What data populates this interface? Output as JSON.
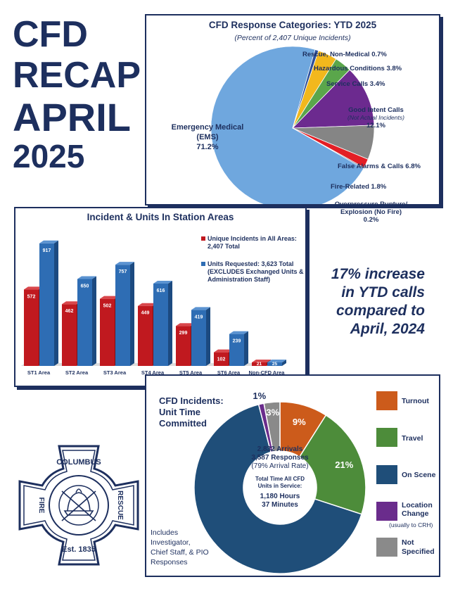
{
  "recap": {
    "line1": "CFD",
    "line2": "RECAP",
    "line3": "APRIL",
    "line4": "2025"
  },
  "statement": {
    "line1": "17% increase",
    "line2": "in YTD calls",
    "line3": "compared to",
    "line4": "April, 2024"
  },
  "logo": {
    "top_text": "COLUMBUS",
    "left_text": "FIRE",
    "right_text": "RESCUE",
    "bottom_text": "Est. 1835"
  },
  "chart_data": [
    {
      "type": "pie",
      "title": "CFD Response Categories: YTD 2025",
      "subtitle": "(Percent of 2,407 Unique Incidents)",
      "slices": [
        {
          "label": "Emergency Medical (EMS)",
          "value": 71.2,
          "value_text": "71.2%",
          "color": "#6fa7de"
        },
        {
          "label": "Rescue, Non-Medical",
          "value": 0.7,
          "value_text": "0.7%",
          "color": "#2d4f9a"
        },
        {
          "label": "Hazardous Conditions",
          "value": 3.8,
          "value_text": "3.8%",
          "color": "#f2b81d"
        },
        {
          "label": "Service Calls",
          "value": 3.4,
          "value_text": "3.4%",
          "color": "#5aa64b"
        },
        {
          "label": "Good Intent Calls",
          "note": "(Not Actual Incidents)",
          "value": 12.1,
          "value_text": "12.1%",
          "color": "#6c2a8f"
        },
        {
          "label": "False Alarms & Calls",
          "value": 6.8,
          "value_text": "6.8%",
          "color": "#858585"
        },
        {
          "label": "Fire-Related",
          "value": 1.8,
          "value_text": "1.8%",
          "color": "#e31e25"
        },
        {
          "label": "Overpressure Rupture/ Explosion (No Fire)",
          "value": 0.2,
          "value_text": "0.2%",
          "color": "#1d2f5e"
        }
      ]
    },
    {
      "type": "bar",
      "title": "Incident & Units In Station Areas",
      "categories": [
        "ST1 Area",
        "ST2 Area",
        "ST3 Area",
        "ST4 Area",
        "ST5 Area",
        "ST6 Area",
        "Non-CFD Area"
      ],
      "series": [
        {
          "name": "Unique Incidents in All Areas: 2,407 Total",
          "color": "#c0191f",
          "values": [
            572,
            462,
            502,
            449,
            299,
            102,
            21
          ]
        },
        {
          "name": "Units Requested: 3,623 Total (EXCLUDES Exchanged Units & Administration Staff)",
          "color": "#2e6db4",
          "values": [
            917,
            650,
            757,
            616,
            419,
            239,
            25
          ]
        }
      ],
      "ylim": [
        0,
        1000
      ]
    },
    {
      "type": "pie",
      "title": "CFD Incidents: Unit Time Committed",
      "donut": true,
      "center": {
        "arrivals": "2,832 Arrivals",
        "responses": "3,587 Responses",
        "rate": "(79% Arrival Rate)",
        "total_label_1": "Total Time All CFD",
        "total_label_2": "Units in Service:",
        "hours": "1,180 Hours",
        "minutes": "37 Minutes"
      },
      "note": "Includes Investigator, Chief Staff, & PIO Responses",
      "slices": [
        {
          "label": "Turnout",
          "value": 9,
          "value_text": "9%",
          "color": "#cc5b1b"
        },
        {
          "label": "Travel",
          "value": 21,
          "value_text": "21%",
          "color": "#4d8c3a"
        },
        {
          "label": "On Scene",
          "value": 66,
          "value_text": "66%",
          "color": "#1f4e79"
        },
        {
          "label": "Location Change",
          "note": "(usually to CRH)",
          "value": 1,
          "value_text": "1%",
          "color": "#6a2c8c"
        },
        {
          "label": "Not Specified",
          "value": 3,
          "value_text": "3%",
          "color": "#8a8a8a"
        }
      ]
    }
  ]
}
